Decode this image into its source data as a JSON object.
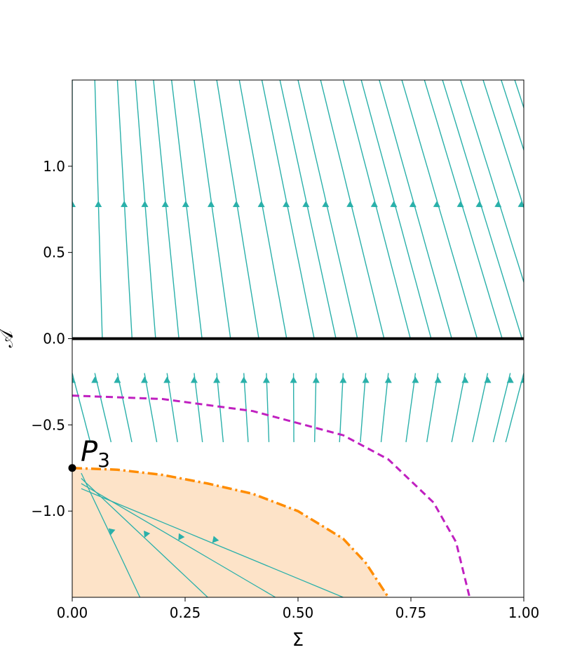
{
  "chart_data": {
    "type": "line",
    "title": "",
    "xlabel": "Σ",
    "ylabel": "𝒜",
    "xlim": [
      0.0,
      1.0
    ],
    "ylim": [
      -1.5,
      1.5
    ],
    "x_ticks": [
      0.0,
      0.25,
      0.5,
      0.75,
      1.0
    ],
    "x_tick_labels": [
      "0.00",
      "0.25",
      "0.50",
      "0.75",
      "1.00"
    ],
    "y_ticks": [
      -1.0,
      -0.5,
      0.0,
      0.5,
      1.0
    ],
    "y_tick_labels": [
      "−1.0",
      "−0.5",
      "0.0",
      "0.5",
      "1.0"
    ],
    "grid": false,
    "colors": {
      "streamline": "#2ab0aa",
      "horizon_line": "#000000",
      "dashed_curve": "#c020c0",
      "dashdot_curve": "#ff8c00",
      "shaded_region": "#fde3c8",
      "point": "#000000"
    },
    "streamline_x0_upper": [
      0.0,
      0.05,
      0.1,
      0.14,
      0.18,
      0.22,
      0.27,
      0.32,
      0.37,
      0.42,
      0.46,
      0.5,
      0.55,
      0.6,
      0.64,
      0.68,
      0.73,
      0.78,
      0.82,
      0.86,
      0.91,
      0.95,
      0.98,
      1.0
    ],
    "streamline_x0_lower": [
      0.0,
      0.05,
      0.1,
      0.16,
      0.21,
      0.27,
      0.32,
      0.38,
      0.43,
      0.49,
      0.54,
      0.6,
      0.65,
      0.7,
      0.76,
      0.81,
      0.87,
      0.92,
      0.97,
      1.0
    ],
    "lines": [
      {
        "kind": "horizon",
        "x": [
          0.0,
          1.0
        ],
        "y": [
          0.0,
          0.0
        ]
      },
      {
        "kind": "dashed",
        "x": [
          0.0,
          0.2,
          0.4,
          0.6,
          0.7,
          0.8,
          0.85,
          0.88
        ],
        "y": [
          -0.33,
          -0.35,
          -0.42,
          -0.56,
          -0.7,
          -0.95,
          -1.18,
          -1.5
        ]
      },
      {
        "kind": "dashdot",
        "x": [
          0.0,
          0.1,
          0.2,
          0.3,
          0.4,
          0.5,
          0.6,
          0.65,
          0.7
        ],
        "y": [
          -0.75,
          -0.76,
          -0.79,
          -0.84,
          -0.9,
          -1.0,
          -1.16,
          -1.3,
          -1.5
        ]
      }
    ],
    "points": [
      {
        "name": "P",
        "subscript": "3",
        "x": 0.0,
        "y": -0.75
      }
    ]
  }
}
